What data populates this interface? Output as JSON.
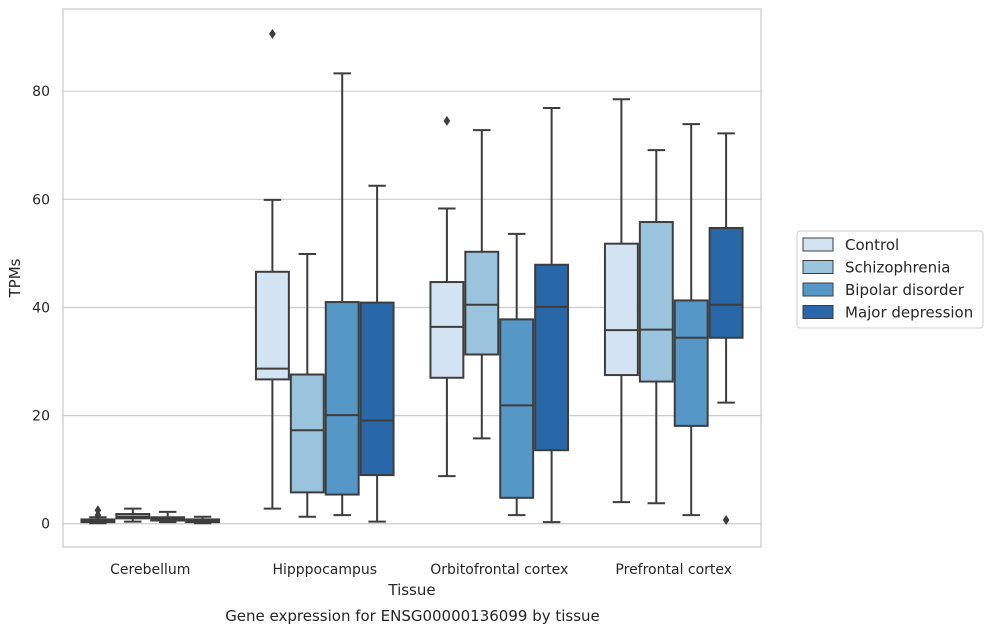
{
  "caption": "Gene expression for ENSG00000136099 by tissue",
  "chart_data": {
    "type": "boxplot",
    "xlabel": "Tissue",
    "ylabel": "TPMs",
    "ylim": [
      -4.3,
      95.2
    ],
    "yticks": [
      0,
      20,
      40,
      60,
      80
    ],
    "grid": "horizontal",
    "legend_position": "right",
    "categories": [
      "Cerebellum",
      "Hipppocampus",
      "Orbitofrontal cortex",
      "Prefrontal cortex"
    ],
    "series": [
      {
        "name": "Control",
        "color": "#d4e3f1",
        "boxes": [
          {
            "whislo": 0.1,
            "q1": 0.3,
            "med": 0.5,
            "q3": 0.8,
            "whishi": 1.2,
            "fliers": [
              2.5,
              1.6
            ]
          },
          {
            "whislo": 2.8,
            "q1": 26.7,
            "med": 28.7,
            "q3": 46.6,
            "whishi": 59.9,
            "fliers": [
              90.6
            ]
          },
          {
            "whislo": 8.8,
            "q1": 27.0,
            "med": 36.4,
            "q3": 44.7,
            "whishi": 58.3,
            "fliers": [
              74.5
            ]
          },
          {
            "whislo": 4.0,
            "q1": 27.5,
            "med": 35.8,
            "q3": 51.8,
            "whishi": 78.5,
            "fliers": []
          }
        ]
      },
      {
        "name": "Schizophrenia",
        "color": "#9ac3de",
        "boxes": [
          {
            "whislo": 0.4,
            "q1": 1.0,
            "med": 1.3,
            "q3": 1.8,
            "whishi": 2.8,
            "fliers": []
          },
          {
            "whislo": 1.3,
            "q1": 5.8,
            "med": 17.3,
            "q3": 27.6,
            "whishi": 49.9,
            "fliers": []
          },
          {
            "whislo": 15.8,
            "q1": 31.3,
            "med": 40.5,
            "q3": 50.3,
            "whishi": 72.8,
            "fliers": []
          },
          {
            "whislo": 3.8,
            "q1": 26.3,
            "med": 35.9,
            "q3": 55.8,
            "whishi": 69.1,
            "fliers": []
          }
        ]
      },
      {
        "name": "Bipolar disorder",
        "color": "#5598c8",
        "boxes": [
          {
            "whislo": 0.3,
            "q1": 0.6,
            "med": 0.9,
            "q3": 1.2,
            "whishi": 2.2,
            "fliers": []
          },
          {
            "whislo": 1.6,
            "q1": 5.4,
            "med": 20.1,
            "q3": 41.0,
            "whishi": 83.3,
            "fliers": []
          },
          {
            "whislo": 1.6,
            "q1": 4.8,
            "med": 21.9,
            "q3": 37.8,
            "whishi": 53.6,
            "fliers": []
          },
          {
            "whislo": 1.6,
            "q1": 18.1,
            "med": 34.4,
            "q3": 41.3,
            "whishi": 73.9,
            "fliers": []
          }
        ]
      },
      {
        "name": "Major depression",
        "color": "#2867a8",
        "boxes": [
          {
            "whislo": 0.1,
            "q1": 0.3,
            "med": 0.5,
            "q3": 0.8,
            "whishi": 1.3,
            "fliers": []
          },
          {
            "whislo": 0.4,
            "q1": 9.0,
            "med": 19.1,
            "q3": 40.9,
            "whishi": 62.5,
            "fliers": []
          },
          {
            "whislo": 0.3,
            "q1": 13.6,
            "med": 40.1,
            "q3": 47.9,
            "whishi": 76.9,
            "fliers": []
          },
          {
            "whislo": 22.4,
            "q1": 34.4,
            "med": 40.5,
            "q3": 54.7,
            "whishi": 72.2,
            "fliers": [
              0.7
            ]
          }
        ]
      }
    ]
  }
}
